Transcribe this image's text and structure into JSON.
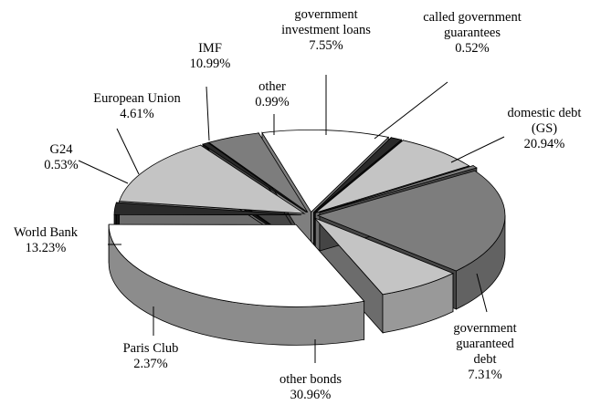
{
  "chart_data": {
    "type": "pie",
    "style": "3d-exploded",
    "title": "",
    "slices": [
      {
        "label_lines": [
          "domestic debt",
          "(GS)"
        ],
        "value_text": "20.94%",
        "value": 20.94,
        "color": "#7d7d7d"
      },
      {
        "label_lines": [
          "government",
          "guaranteed",
          "debt"
        ],
        "value_text": "7.31%",
        "value": 7.31,
        "color": "#c4c4c4"
      },
      {
        "label_lines": [
          "other bonds"
        ],
        "value_text": "30.96%",
        "value": 30.96,
        "color": "#ffffff"
      },
      {
        "label_lines": [
          "Paris Club"
        ],
        "value_text": "2.37%",
        "value": 2.37,
        "color": "#2a2a2a"
      },
      {
        "label_lines": [
          "World Bank"
        ],
        "value_text": "13.23%",
        "value": 13.23,
        "color": "#c4c4c4"
      },
      {
        "label_lines": [
          "G24"
        ],
        "value_text": "0.53%",
        "value": 0.53,
        "color": "#2a2a2a"
      },
      {
        "label_lines": [
          "European Union"
        ],
        "value_text": "4.61%",
        "value": 4.61,
        "color": "#7d7d7d"
      },
      {
        "label_lines": [
          "IMF"
        ],
        "value_text": "10.99%",
        "value": 10.99,
        "color": "#ffffff"
      },
      {
        "label_lines": [
          "other"
        ],
        "value_text": "0.99%",
        "value": 0.99,
        "color": "#2a2a2a"
      },
      {
        "label_lines": [
          "government",
          "investment loans"
        ],
        "value_text": "7.55%",
        "value": 7.55,
        "color": "#c4c4c4"
      },
      {
        "label_lines": [
          "called government",
          "guarantees"
        ],
        "value_text": "0.52%",
        "value": 0.52,
        "color": "#7d7d7d"
      }
    ]
  }
}
